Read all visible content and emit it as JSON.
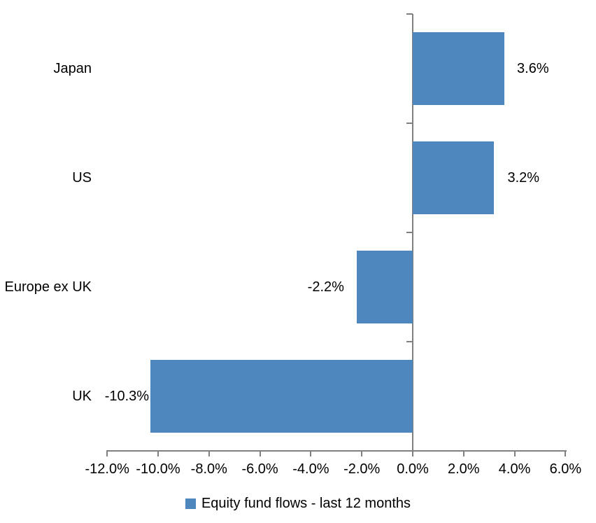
{
  "chart_data": {
    "type": "bar",
    "orientation": "horizontal",
    "categories": [
      "Japan",
      "US",
      "Europe ex UK",
      "UK"
    ],
    "series": [
      {
        "name": "Equity fund flows - last 12 months",
        "values": [
          3.6,
          3.2,
          -2.2,
          -10.3
        ],
        "data_labels": [
          "3.6%",
          "3.2%",
          "-2.2%",
          "-10.3%"
        ],
        "color": "#4e86be"
      }
    ],
    "xlim": [
      -12,
      6
    ],
    "x_tick_values": [
      -12,
      -10,
      -8,
      -6,
      -4,
      -2,
      0,
      2,
      4,
      6
    ],
    "x_tick_labels": [
      "-12.0%",
      "-10.0%",
      "-8.0%",
      "-6.0%",
      "-4.0%",
      "-2.0%",
      "0.0%",
      "2.0%",
      "4.0%",
      "6.0%"
    ],
    "grid": false,
    "legend_position": "bottom",
    "data_label_position": "outside-end",
    "axis_color": "#808080",
    "text_color": "#000000",
    "background_color": "#ffffff"
  }
}
